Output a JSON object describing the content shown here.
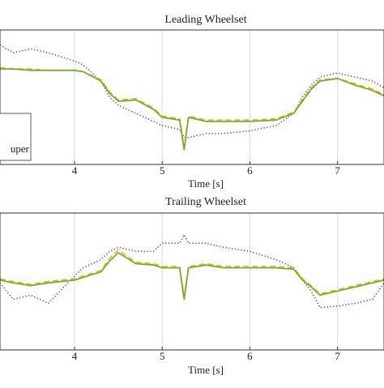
{
  "chart_data": [
    {
      "type": "line",
      "title": "Leading Wheelset",
      "xlabel": "Time [s]",
      "x": [
        3.15,
        3.3,
        3.5,
        3.7,
        4.0,
        4.1,
        4.3,
        4.4,
        4.5,
        4.7,
        4.9,
        5.0,
        5.2,
        5.25,
        5.3,
        5.5,
        5.7,
        6.0,
        6.3,
        6.5,
        6.6,
        6.7,
        6.8,
        7.0,
        7.2,
        7.4,
        7.53
      ],
      "xlim": [
        3.15,
        7.53
      ],
      "ylim": [
        0,
        1
      ],
      "xticks": [
        4,
        5,
        6,
        7
      ],
      "grid": true,
      "legend": "lower left",
      "series": [
        {
          "color": "#7e2f8e",
          "linestyle": "dotted",
          "values": [
            0.89,
            0.83,
            0.86,
            0.83,
            0.77,
            0.74,
            0.62,
            0.5,
            0.44,
            0.38,
            0.32,
            0.29,
            0.26,
            0.2,
            0.2,
            0.23,
            0.23,
            0.25,
            0.29,
            0.38,
            0.5,
            0.59,
            0.65,
            0.68,
            0.65,
            0.62,
            0.57
          ]
        },
        {
          "color": "#edb120",
          "linestyle": "dashed",
          "values": [
            0.72,
            0.71,
            0.71,
            0.7,
            0.7,
            0.69,
            0.63,
            0.54,
            0.48,
            0.49,
            0.42,
            0.36,
            0.34,
            0.13,
            0.36,
            0.33,
            0.33,
            0.33,
            0.34,
            0.39,
            0.48,
            0.57,
            0.63,
            0.64,
            0.6,
            0.56,
            0.52
          ]
        },
        {
          "name": "uper",
          "color": "#77ac30",
          "linestyle": "solid",
          "values": [
            0.71,
            0.71,
            0.7,
            0.7,
            0.7,
            0.69,
            0.62,
            0.53,
            0.47,
            0.48,
            0.41,
            0.35,
            0.33,
            0.11,
            0.35,
            0.32,
            0.32,
            0.32,
            0.33,
            0.38,
            0.47,
            0.56,
            0.62,
            0.64,
            0.59,
            0.55,
            0.51
          ]
        }
      ]
    },
    {
      "type": "line",
      "title": "Trailing Wheelset",
      "xlabel": "Time [s]",
      "x": [
        3.15,
        3.3,
        3.5,
        3.7,
        4.0,
        4.1,
        4.3,
        4.4,
        4.5,
        4.7,
        4.9,
        5.0,
        5.2,
        5.25,
        5.3,
        5.5,
        5.7,
        6.0,
        6.3,
        6.5,
        6.6,
        6.7,
        6.8,
        7.0,
        7.2,
        7.4,
        7.53
      ],
      "xlim": [
        3.15,
        7.53
      ],
      "ylim": [
        0,
        1
      ],
      "xticks": [
        4,
        5,
        6,
        7
      ],
      "grid": true,
      "series": [
        {
          "color": "#7e2f8e",
          "linestyle": "dotted",
          "values": [
            0.49,
            0.37,
            0.4,
            0.34,
            0.54,
            0.6,
            0.66,
            0.72,
            0.75,
            0.72,
            0.72,
            0.78,
            0.78,
            0.84,
            0.78,
            0.78,
            0.75,
            0.72,
            0.66,
            0.6,
            0.51,
            0.43,
            0.31,
            0.32,
            0.34,
            0.37,
            0.49
          ]
        },
        {
          "color": "#edb120",
          "linestyle": "dashed",
          "values": [
            0.52,
            0.5,
            0.48,
            0.5,
            0.52,
            0.54,
            0.58,
            0.67,
            0.73,
            0.64,
            0.63,
            0.61,
            0.61,
            0.39,
            0.61,
            0.63,
            0.61,
            0.61,
            0.61,
            0.6,
            0.52,
            0.47,
            0.41,
            0.44,
            0.47,
            0.5,
            0.52
          ]
        },
        {
          "color": "#77ac30",
          "linestyle": "solid",
          "values": [
            0.51,
            0.49,
            0.47,
            0.49,
            0.51,
            0.53,
            0.57,
            0.65,
            0.71,
            0.63,
            0.62,
            0.6,
            0.6,
            0.37,
            0.6,
            0.62,
            0.6,
            0.6,
            0.6,
            0.59,
            0.51,
            0.46,
            0.4,
            0.43,
            0.46,
            0.49,
            0.51
          ]
        }
      ]
    }
  ]
}
